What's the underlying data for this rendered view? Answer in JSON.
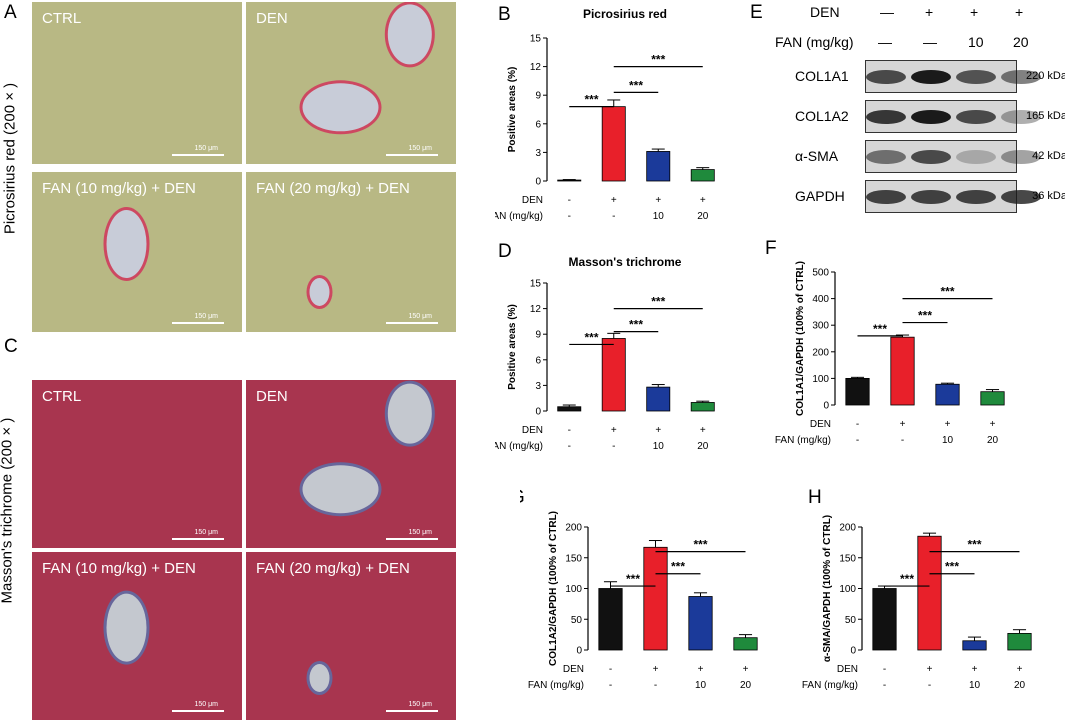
{
  "panels": {
    "A": {
      "letter": "A",
      "side_label": "Picrosirius red (200 × )",
      "images": [
        {
          "label": "CTRL",
          "scale": "150 μm"
        },
        {
          "label": "DEN",
          "scale": "150 μm"
        },
        {
          "label": "FAN (10 mg/kg) + DEN",
          "scale": "150 μm"
        },
        {
          "label": "FAN (20 mg/kg) + DEN",
          "scale": "150 μm"
        }
      ],
      "colors": {
        "tissue": "#b8b884",
        "vessel": "#c8ccd8",
        "stain": "#d0345a"
      }
    },
    "C": {
      "letter": "C",
      "side_label": "Masson's trichrome (200 × )",
      "images": [
        {
          "label": "CTRL",
          "scale": "150 μm"
        },
        {
          "label": "DEN",
          "scale": "150 μm"
        },
        {
          "label": "FAN (10 mg/kg) + DEN",
          "scale": "150 μm"
        },
        {
          "label": "FAN (20 mg/kg) + DEN",
          "scale": "150 μm"
        }
      ],
      "colors": {
        "tissue": "#a8354f",
        "vessel": "#c4c8cf",
        "stain": "#5c6ea8"
      }
    },
    "E": {
      "letter": "E",
      "den_label": "DEN",
      "den_values": [
        "—",
        "+",
        "+",
        "+"
      ],
      "fan_label": "FAN (mg/kg)",
      "fan_values": [
        "—",
        "—",
        "10",
        "20"
      ],
      "rows": [
        {
          "name": "COL1A1",
          "kda": "220 kDa",
          "intensity": [
            0.75,
            1.0,
            0.7,
            0.55
          ]
        },
        {
          "name": "COL1A2",
          "kda": "165 kDa",
          "intensity": [
            0.85,
            1.0,
            0.75,
            0.35
          ]
        },
        {
          "name": "α-SMA",
          "kda": "42 kDa",
          "intensity": [
            0.55,
            0.75,
            0.25,
            0.4
          ]
        },
        {
          "name": "GAPDH",
          "kda": "36 kDa",
          "intensity": [
            0.8,
            0.8,
            0.8,
            0.8
          ]
        }
      ]
    }
  },
  "bar_colors": [
    "#111111",
    "#e8202a",
    "#1b3a9a",
    "#1f8a3c"
  ],
  "treatment_rows": {
    "den_label": "DEN",
    "fan_label": "FAN (mg/kg)",
    "den": [
      "-",
      "+",
      "+",
      "+"
    ],
    "fan": [
      "-",
      "-",
      "10",
      "20"
    ]
  },
  "chart_data": [
    {
      "id": "B",
      "type": "bar",
      "title": "Picrosirius red",
      "ylabel": "Positive areas (%)",
      "categories": [
        "CTRL",
        "DEN",
        "FAN 10 + DEN",
        "FAN 20 + DEN"
      ],
      "values": [
        0.1,
        7.8,
        3.1,
        1.2
      ],
      "errors": [
        0.05,
        0.7,
        0.25,
        0.2
      ],
      "ylim": [
        0,
        15
      ],
      "yticks": [
        0,
        3,
        6,
        9,
        12,
        15
      ],
      "significance": [
        {
          "from": 0,
          "to": 1,
          "label": "***"
        },
        {
          "from": 1,
          "to": 2,
          "label": "***"
        },
        {
          "from": 1,
          "to": 3,
          "label": "***"
        }
      ]
    },
    {
      "id": "D",
      "type": "bar",
      "title": "Masson's trichrome",
      "ylabel": "Positive areas (%)",
      "categories": [
        "CTRL",
        "DEN",
        "FAN 10 + DEN",
        "FAN 20 + DEN"
      ],
      "values": [
        0.5,
        8.5,
        2.8,
        1.0
      ],
      "errors": [
        0.2,
        0.6,
        0.3,
        0.15
      ],
      "ylim": [
        0,
        15
      ],
      "yticks": [
        0,
        3,
        6,
        9,
        12,
        15
      ],
      "significance": [
        {
          "from": 0,
          "to": 1,
          "label": "***"
        },
        {
          "from": 1,
          "to": 2,
          "label": "***"
        },
        {
          "from": 1,
          "to": 3,
          "label": "***"
        }
      ]
    },
    {
      "id": "F",
      "type": "bar",
      "title": "",
      "ylabel": "COL1A1/GAPDH (100% of CTRL)",
      "categories": [
        "CTRL",
        "DEN",
        "FAN 10 + DEN",
        "FAN 20 + DEN"
      ],
      "values": [
        100,
        255,
        78,
        50
      ],
      "errors": [
        4,
        8,
        4,
        8
      ],
      "ylim": [
        0,
        500
      ],
      "yticks": [
        0,
        100,
        200,
        300,
        400,
        500
      ],
      "significance": [
        {
          "from": 0,
          "to": 1,
          "label": "***"
        },
        {
          "from": 1,
          "to": 2,
          "label": "***"
        },
        {
          "from": 1,
          "to": 3,
          "label": "***"
        }
      ]
    },
    {
      "id": "G",
      "type": "bar",
      "title": "",
      "ylabel": "COL1A2/GAPDH (100% of CTRL)",
      "categories": [
        "CTRL",
        "DEN",
        "FAN 10 + DEN",
        "FAN 20 + DEN"
      ],
      "values": [
        100,
        167,
        87,
        20
      ],
      "errors": [
        11,
        11,
        6,
        5
      ],
      "ylim": [
        0,
        200
      ],
      "yticks": [
        0,
        50,
        100,
        150,
        200
      ],
      "significance": [
        {
          "from": 0,
          "to": 1,
          "label": "***"
        },
        {
          "from": 1,
          "to": 2,
          "label": "***"
        },
        {
          "from": 1,
          "to": 3,
          "label": "***"
        }
      ]
    },
    {
      "id": "H",
      "type": "bar",
      "title": "",
      "ylabel": "α-SMA/GAPDH (100% of CTRL)",
      "categories": [
        "CTRL",
        "DEN",
        "FAN 10 + DEN",
        "FAN 20 + DEN"
      ],
      "values": [
        100,
        185,
        15,
        27
      ],
      "errors": [
        4,
        5,
        6,
        6
      ],
      "ylim": [
        0,
        200
      ],
      "yticks": [
        0,
        50,
        100,
        150,
        200
      ],
      "significance": [
        {
          "from": 0,
          "to": 1,
          "label": "***"
        },
        {
          "from": 1,
          "to": 2,
          "label": "***"
        },
        {
          "from": 1,
          "to": 3,
          "label": "***"
        }
      ]
    }
  ]
}
